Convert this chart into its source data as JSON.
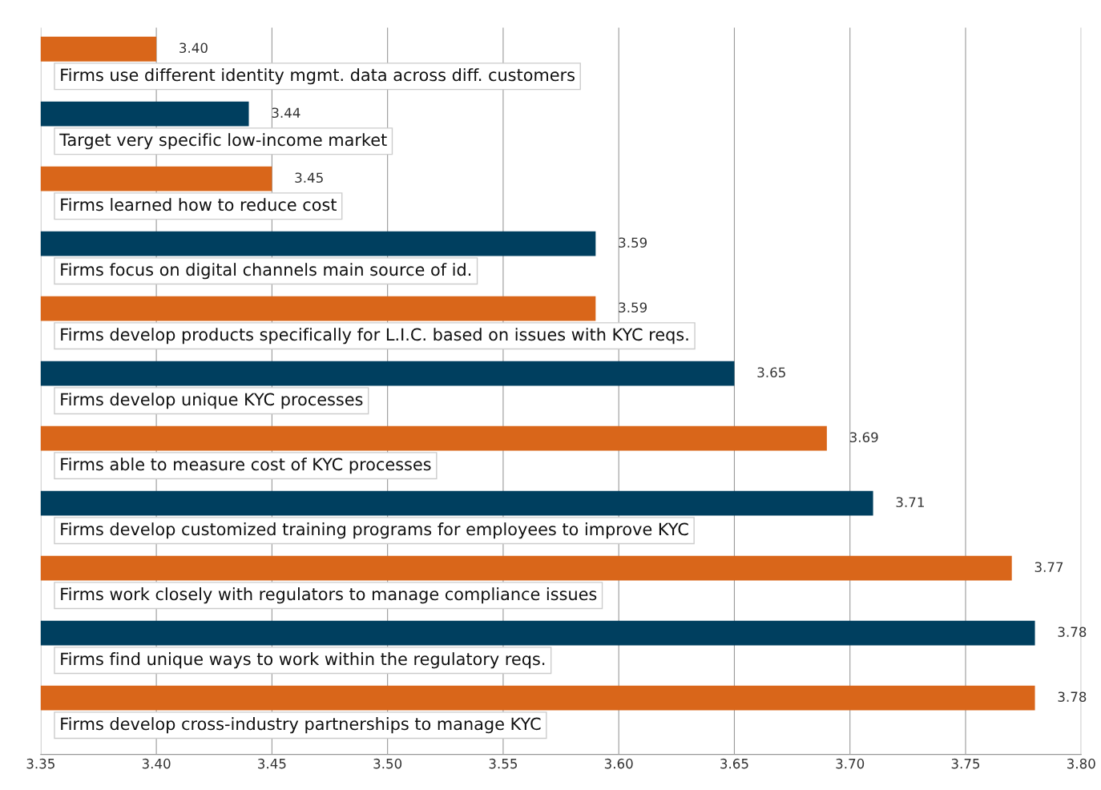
{
  "chart_data": {
    "type": "bar",
    "orientation": "horizontal",
    "categories": [
      "Firms use different identity mgmt. data across diff. customers",
      "Target very specific low-income market",
      "Firms learned how to reduce cost",
      "Firms focus on digital channels main source of id.",
      "Firms develop products specifically for L.I.C. based on issues with KYC reqs.",
      "Firms develop unique KYC processes",
      "Firms able to measure cost of KYC processes",
      "Firms develop customized training programs for employees to improve KYC",
      "Firms work closely with regulators to manage compliance issues",
      "Firms find unique ways to work within the regulatory reqs.",
      "Firms develop cross-industry partnerships to manage KYC"
    ],
    "values": [
      3.4,
      3.44,
      3.45,
      3.59,
      3.59,
      3.65,
      3.69,
      3.71,
      3.77,
      3.78,
      3.78
    ],
    "value_labels": [
      "3.40",
      "3.44",
      "3.45",
      "3.59",
      "3.59",
      "3.65",
      "3.69",
      "3.71",
      "3.77",
      "3.78",
      "3.78"
    ],
    "colors": [
      "#d9661a",
      "#003f5f",
      "#d9661a",
      "#003f5f",
      "#d9661a",
      "#003f5f",
      "#d9661a",
      "#003f5f",
      "#d9661a",
      "#003f5f",
      "#d9661a"
    ],
    "xlim": [
      3.35,
      3.8
    ],
    "xticks": [
      {
        "value": 3.35,
        "label": "3.35"
      },
      {
        "value": 3.4,
        "label": "3.40"
      },
      {
        "value": 3.45,
        "label": "3.45"
      },
      {
        "value": 3.5,
        "label": "3.50"
      },
      {
        "value": 3.55,
        "label": "3.55"
      },
      {
        "value": 3.6,
        "label": "3.60"
      },
      {
        "value": 3.65,
        "label": "3.65"
      },
      {
        "value": 3.7,
        "label": "3.70"
      },
      {
        "value": 3.75,
        "label": "3.75"
      },
      {
        "value": 3.8,
        "label": "3.80"
      }
    ],
    "grid": "x"
  }
}
